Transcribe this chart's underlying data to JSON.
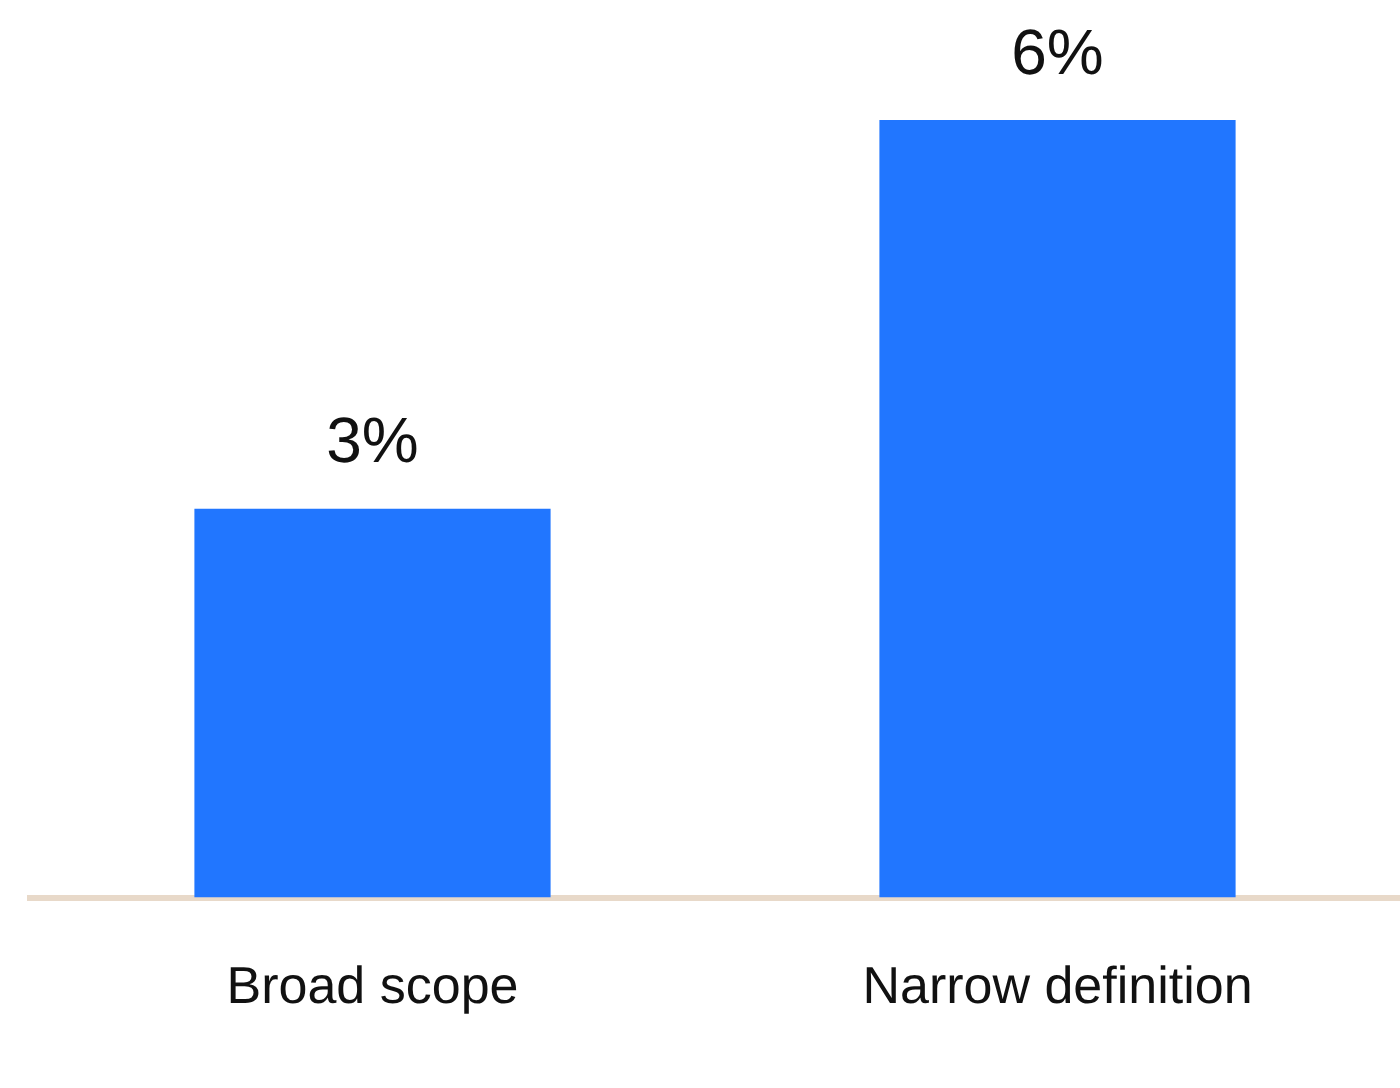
{
  "chart_data": {
    "type": "bar",
    "categories": [
      "Broad scope",
      "Narrow definition"
    ],
    "values": [
      3,
      6
    ],
    "value_labels": [
      "3%",
      "6%"
    ],
    "color": "#2176ff",
    "grid": false,
    "legend": false,
    "tick_labels": "x"
  }
}
